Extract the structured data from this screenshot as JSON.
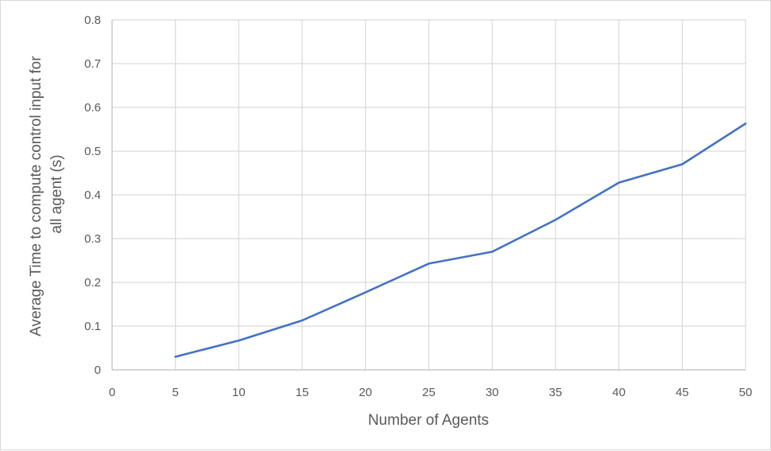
{
  "chart_data": {
    "type": "line",
    "xlabel": "Number of Agents",
    "ylabel_lines": [
      "Average Time to compute control input for",
      "all agent (s)"
    ],
    "xlim": [
      0,
      50
    ],
    "ylim": [
      0,
      0.8
    ],
    "x_ticks": [
      "0",
      "5",
      "10",
      "15",
      "20",
      "25",
      "30",
      "35",
      "40",
      "45",
      "50"
    ],
    "y_ticks": [
      "0",
      "0.1",
      "0.2",
      "0.3",
      "0.4",
      "0.5",
      "0.6",
      "0.7",
      "0.8"
    ],
    "grid": true,
    "legend": "none",
    "series": [
      {
        "color": "#4472c4",
        "x": [
          5,
          10,
          15,
          20,
          25,
          30,
          35,
          40,
          45,
          50
        ],
        "y": [
          0.03,
          0.067,
          0.113,
          0.177,
          0.243,
          0.27,
          0.343,
          0.428,
          0.47,
          0.563
        ]
      }
    ]
  }
}
